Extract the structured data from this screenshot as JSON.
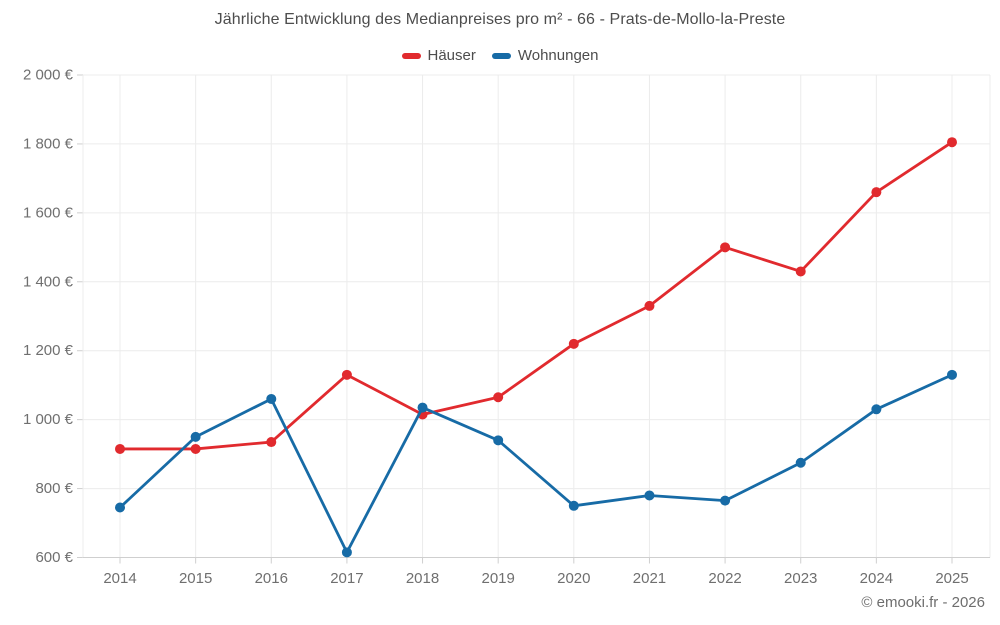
{
  "title": "Jährliche Entwicklung des Medianpreises pro m² - 66 - Prats-de-Mollo-la-Preste",
  "footer": "© emooki.fr - 2026",
  "colors": {
    "haeuser_red": "#e12a2e",
    "wohnungen_blue": "#176ba6",
    "grid": "#ececec",
    "axis_line": "#cfcfcf",
    "tick_label": "#6f6f6f",
    "title_text": "#4d4d4d",
    "footer_text": "#6e6e6e"
  },
  "chart_data": {
    "type": "line",
    "title": "Jährliche Entwicklung des Medianpreises pro m² - 66 - Prats-de-Mollo-la-Preste",
    "categories": [
      "2014",
      "2015",
      "2016",
      "2017",
      "2018",
      "2019",
      "2020",
      "2021",
      "2022",
      "2023",
      "2024",
      "2025"
    ],
    "series": [
      {
        "name": "Häuser",
        "color": "#e12a2e",
        "values": [
          915,
          915,
          935,
          1130,
          1015,
          1065,
          1220,
          1330,
          1500,
          1430,
          1660,
          1805
        ]
      },
      {
        "name": "Wohnungen",
        "color": "#176ba6",
        "values": [
          745,
          950,
          1060,
          615,
          1035,
          940,
          750,
          780,
          765,
          875,
          1030,
          1130
        ]
      }
    ],
    "xlabel": "",
    "ylabel": "",
    "ylim": [
      600,
      2000
    ],
    "y_ticks": [
      {
        "value": 600,
        "label": "600 €"
      },
      {
        "value": 800,
        "label": "800 €"
      },
      {
        "value": 1000,
        "label": "1 000 €"
      },
      {
        "value": 1200,
        "label": "1 200 €"
      },
      {
        "value": 1400,
        "label": "1 400 €"
      },
      {
        "value": 1600,
        "label": "1 600 €"
      },
      {
        "value": 1800,
        "label": "1 800 €"
      },
      {
        "value": 2000,
        "label": "2 000 €"
      }
    ],
    "grid": true,
    "legend_position": "top",
    "marker": "circle",
    "unit": "€"
  }
}
